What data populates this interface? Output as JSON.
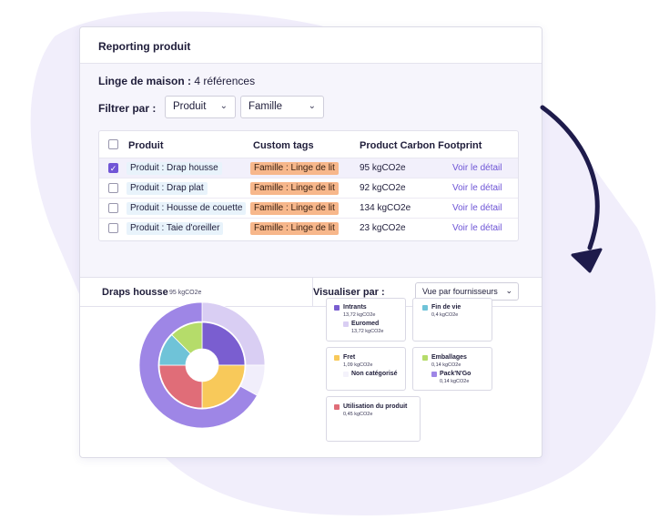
{
  "colors": {
    "accent": "#7155d6",
    "background_blob": "#f2f0fb",
    "tag": "#f7b78b",
    "product_chip": "#e8f3fb",
    "arrow": "#1e1b4b"
  },
  "card": {
    "title": "Reporting produit",
    "category": {
      "name": "Linge de maison :",
      "count": "4 références"
    },
    "filter": {
      "label": "Filtrer par :",
      "select_1": "Produit",
      "select_2": "Famille"
    },
    "table": {
      "headers": [
        "Produit",
        "Custom tags",
        "Product Carbon Footprint"
      ],
      "rows": [
        {
          "product": "Produit : Drap housse",
          "tag": "Famille : Linge de lit",
          "pcf": "95 kgCO2e",
          "action": "Voir le détail",
          "checked": true
        },
        {
          "product": "Produit : Drap plat",
          "tag": "Famille : Linge de lit",
          "pcf": "92 kgCO2e",
          "action": "Voir le détail",
          "checked": false
        },
        {
          "product": "Produit : Housse de couette",
          "tag": "Famille : Linge de lit",
          "pcf": "134 kgCO2e",
          "action": "Voir le détail",
          "checked": false
        },
        {
          "product": "Produit : Taie d'oreiller",
          "tag": "Famille : Linge de lit",
          "pcf": "23 kgCO2e",
          "action": "Voir le détail",
          "checked": false
        }
      ]
    },
    "detail": {
      "title": "Draps housse",
      "total": "95 kgCO2e",
      "visualize_label": "Visualiser par :",
      "visualize_select": "Vue par fournisseurs"
    }
  },
  "chart_data": {
    "type": "pie",
    "inner_ring": [
      {
        "name": "Intrants",
        "color": "#7a5ed0",
        "share": 0.25
      },
      {
        "name": "Fret",
        "color": "#f8c95a",
        "share": 0.25
      },
      {
        "name": "Utilisation du produit",
        "color": "#e06d78",
        "share": 0.25
      },
      {
        "name": "Fin de vie",
        "color": "#6fc3d8",
        "share": 0.125
      },
      {
        "name": "Emballages",
        "color": "#b5dc6a",
        "share": 0.125
      }
    ],
    "outer_ring": [
      {
        "name": "Euromed",
        "color": "#d9cef3",
        "share": 0.25
      },
      {
        "name": "Non catégorisé",
        "color": "#f1eefb",
        "share": 0.08
      },
      {
        "name": "Pack'N'Go",
        "color": "#9e86e6",
        "share": 0.67
      }
    ],
    "legend": [
      {
        "label": "Intrants",
        "value": "13,72 kgCO2e",
        "color": "#7a5ed0",
        "sub": {
          "label": "Euromed",
          "value": "13,72 kgCO2e",
          "color": "#d9cef3"
        }
      },
      {
        "label": "Fin de vie",
        "value": "0,4 kgCO2e",
        "color": "#6fc3d8"
      },
      {
        "label": "Fret",
        "value": "1,09 kgCO2e",
        "color": "#f8c95a",
        "sub": {
          "label": "Non catégorisé",
          "value": "",
          "color": "#f4f2fb"
        }
      },
      {
        "label": "Emballages",
        "value": "0,14 kgCO2e",
        "color": "#b5dc6a",
        "sub": {
          "label": "Pack'N'Go",
          "value": "0,14 kgCO2e",
          "color": "#9e86e6"
        }
      },
      {
        "label": "Utilisation du produit",
        "value": "0,45 kgCO2e",
        "color": "#e06d78"
      }
    ]
  }
}
